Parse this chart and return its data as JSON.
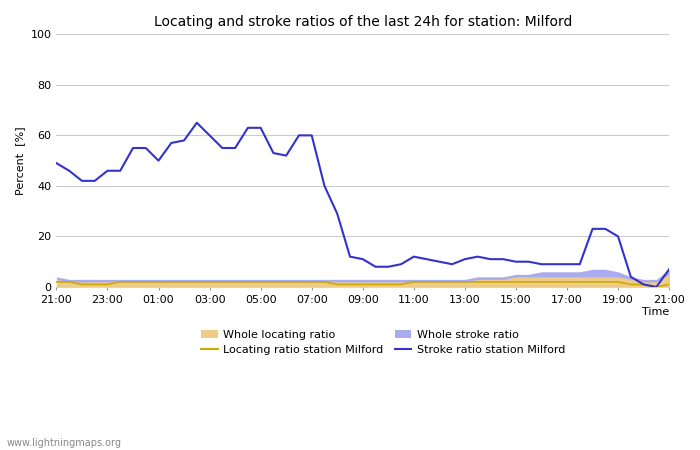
{
  "title": "Locating and stroke ratios of the last 24h for station: Milford",
  "xlabel": "Time",
  "ylabel": "Percent  [%]",
  "ylim": [
    0,
    100
  ],
  "xtick_labels": [
    "21:00",
    "23:00",
    "01:00",
    "03:00",
    "05:00",
    "07:00",
    "09:00",
    "11:00",
    "13:00",
    "15:00",
    "17:00",
    "19:00",
    "21:00"
  ],
  "watermark": "www.lightningmaps.org",
  "background_color": "#ffffff",
  "plot_bg_color": "#ffffff",
  "grid_color": "#cccccc",
  "stroke_ratio_milford": [
    49,
    46,
    42,
    42,
    46,
    46,
    55,
    55,
    50,
    57,
    58,
    65,
    60,
    55,
    55,
    63,
    63,
    53,
    52,
    60,
    60,
    40,
    29,
    12,
    11,
    8,
    8,
    9,
    12,
    11,
    10,
    9,
    11,
    12,
    11,
    11,
    10,
    10,
    9,
    9,
    9,
    9,
    23,
    23,
    20,
    4,
    1,
    0,
    7
  ],
  "locating_ratio_milford": [
    2,
    2,
    1,
    1,
    1,
    2,
    2,
    2,
    2,
    2,
    2,
    2,
    2,
    2,
    2,
    2,
    2,
    2,
    2,
    2,
    2,
    2,
    1,
    1,
    1,
    1,
    1,
    1,
    2,
    2,
    2,
    2,
    2,
    2,
    2,
    2,
    2,
    2,
    2,
    2,
    2,
    2,
    2,
    2,
    2,
    1,
    1,
    0,
    1
  ],
  "whole_stroke_ratio": [
    4,
    3,
    3,
    3,
    3,
    3,
    3,
    3,
    3,
    3,
    3,
    3,
    3,
    3,
    3,
    3,
    3,
    3,
    3,
    3,
    3,
    3,
    3,
    3,
    3,
    3,
    3,
    3,
    3,
    3,
    3,
    3,
    3,
    4,
    4,
    4,
    5,
    5,
    6,
    6,
    6,
    6,
    7,
    7,
    6,
    4,
    3,
    3,
    7
  ],
  "whole_locating_ratio": [
    3,
    2,
    2,
    2,
    2,
    2,
    2,
    2,
    2,
    2,
    2,
    2,
    2,
    2,
    2,
    2,
    2,
    2,
    2,
    2,
    2,
    2,
    2,
    2,
    2,
    2,
    2,
    2,
    2,
    2,
    2,
    2,
    2,
    3,
    3,
    3,
    4,
    4,
    4,
    4,
    4,
    4,
    4,
    4,
    4,
    3,
    2,
    2,
    5
  ],
  "stroke_ratio_color": "#3333cc",
  "locating_ratio_color": "#ccaa00",
  "whole_stroke_fill_color": "#aaaaee",
  "whole_locating_fill_color": "#eecc88",
  "title_fontsize": 10,
  "tick_fontsize": 8,
  "label_fontsize": 8
}
